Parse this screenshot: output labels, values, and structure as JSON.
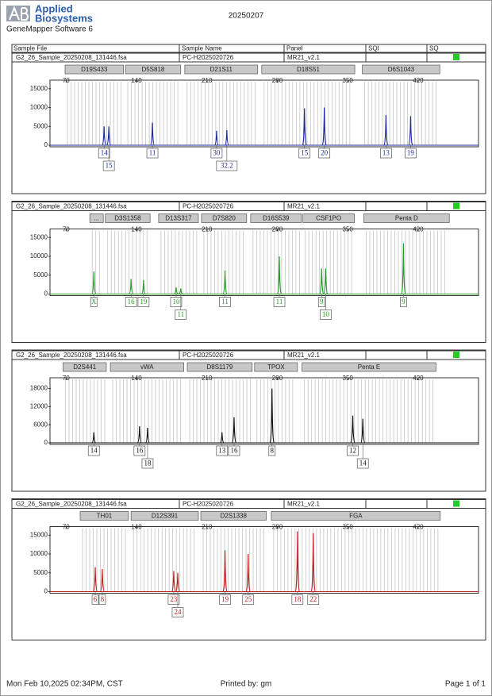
{
  "header": {
    "brand": [
      "Applied",
      "Biosystems"
    ],
    "software": "GeneMapper Software 6",
    "date": "20250207"
  },
  "columns": [
    "Sample File",
    "Sample Name",
    "Panel",
    "SQI",
    "SQ"
  ],
  "panels": [
    {
      "sample_file": "G2_26_Sample_20250208_131446.fsa",
      "sample_name": "PC-H2025020726",
      "panel": "MR21_v2.1",
      "color": "#1f2aa0",
      "xlim": [
        54,
        480
      ],
      "xticks": [
        70,
        140,
        210,
        280,
        350,
        420
      ],
      "ylim": [
        0,
        16000
      ],
      "yticks": [
        0,
        5000,
        10000,
        15000
      ],
      "markers": [
        {
          "name": "D19S433",
          "start": 69,
          "end": 127
        },
        {
          "name": "D5S818",
          "start": 129,
          "end": 184
        },
        {
          "name": "D21S11",
          "start": 188,
          "end": 260.5
        },
        {
          "name": "D18S51",
          "start": 264.5,
          "end": 357
        },
        {
          "name": "D6S1043",
          "start": 364.5,
          "end": 441.5
        }
      ],
      "peaks": [
        {
          "x": 107.8,
          "height": 5000,
          "allele": "14"
        },
        {
          "x": 112.5,
          "height": 5000,
          "allele": "15"
        },
        {
          "x": 155.8,
          "height": 6000,
          "allele": "11"
        },
        {
          "x": 219.6,
          "height": 3800,
          "allele": "30"
        },
        {
          "x": 229.8,
          "height": 4000,
          "allele": "32.2"
        },
        {
          "x": 307,
          "height": 9800,
          "allele": "15"
        },
        {
          "x": 326.7,
          "height": 10000,
          "allele": "20"
        },
        {
          "x": 388,
          "height": 8000,
          "allele": "13"
        },
        {
          "x": 412.5,
          "height": 7700,
          "allele": "19"
        }
      ]
    },
    {
      "sample_file": "G2_26_Sample_20250208_131446.fsa",
      "sample_name": "PC-H2025020726",
      "panel": "MR21_v2.1",
      "color": "#2a9a2a",
      "xlim": [
        54,
        480
      ],
      "xticks": [
        70,
        140,
        210,
        280,
        350,
        420
      ],
      "ylim": [
        0,
        16000
      ],
      "yticks": [
        0,
        5000,
        10000,
        15000
      ],
      "markers": [
        {
          "name": "...",
          "start": 93.6,
          "end": 107
        },
        {
          "name": "D3S1358",
          "start": 109,
          "end": 153.5
        },
        {
          "name": "D13S317",
          "start": 162,
          "end": 201.5
        },
        {
          "name": "D7S820",
          "start": 204.6,
          "end": 249.5
        },
        {
          "name": "D16S539",
          "start": 253.5,
          "end": 303.9
        },
        {
          "name": "CSF1PO",
          "start": 305.4,
          "end": 356.6
        },
        {
          "name": "Penta D",
          "start": 366,
          "end": 451
        }
      ],
      "peaks": [
        {
          "x": 97.6,
          "height": 6000,
          "allele": "X"
        },
        {
          "x": 134.6,
          "height": 4000,
          "allele": "16"
        },
        {
          "x": 147,
          "height": 3700,
          "allele": "19"
        },
        {
          "x": 179.4,
          "height": 1800,
          "allele": "10"
        },
        {
          "x": 184,
          "height": 1500,
          "allele": "11"
        },
        {
          "x": 228,
          "height": 6200,
          "allele": "11"
        },
        {
          "x": 282,
          "height": 10000,
          "allele": "11"
        },
        {
          "x": 324,
          "height": 6800,
          "allele": "9"
        },
        {
          "x": 328,
          "height": 6800,
          "allele": "10"
        },
        {
          "x": 405.4,
          "height": 13500,
          "allele": "9"
        }
      ]
    },
    {
      "sample_file": "G2_26_Sample_20250208_131446.fsa",
      "sample_name": "PC-H2025020726",
      "panel": "MR21_v2.1",
      "color": "#111111",
      "xlim": [
        54,
        480
      ],
      "xticks": [
        70,
        140,
        210,
        280,
        350,
        420
      ],
      "ylim": [
        0,
        20000
      ],
      "yticks": [
        0,
        6000,
        12000,
        18000
      ],
      "markers": [
        {
          "name": "D2S441",
          "start": 67,
          "end": 110
        },
        {
          "name": "vWA",
          "start": 114,
          "end": 187
        },
        {
          "name": "D8S1179",
          "start": 190.5,
          "end": 255
        },
        {
          "name": "TPOX",
          "start": 257.4,
          "end": 300
        },
        {
          "name": "Penta E",
          "start": 304.6,
          "end": 437.7
        }
      ],
      "peaks": [
        {
          "x": 97.6,
          "height": 3500,
          "allele": "14"
        },
        {
          "x": 143,
          "height": 5500,
          "allele": "16"
        },
        {
          "x": 151,
          "height": 5000,
          "allele": "18"
        },
        {
          "x": 225,
          "height": 3500,
          "allele": "13"
        },
        {
          "x": 237,
          "height": 8500,
          "allele": "16"
        },
        {
          "x": 274.7,
          "height": 18000,
          "allele": "8"
        },
        {
          "x": 355,
          "height": 9000,
          "allele": "12"
        },
        {
          "x": 365,
          "height": 8000,
          "allele": "14"
        }
      ]
    },
    {
      "sample_file": "G2_26_Sample_20250208_131446.fsa",
      "sample_name": "PC-H2025020726",
      "panel": "MR21_v2.1",
      "color": "#c02020",
      "xlim": [
        54,
        480
      ],
      "xticks": [
        70,
        140,
        210,
        280,
        350,
        420
      ],
      "ylim": [
        0,
        16000
      ],
      "yticks": [
        0,
        5000,
        10000,
        15000
      ],
      "markers": [
        {
          "name": "TH01",
          "start": 84,
          "end": 132
        },
        {
          "name": "D12S391",
          "start": 134.6,
          "end": 201.5
        },
        {
          "name": "D2S1338",
          "start": 203.9,
          "end": 269
        },
        {
          "name": "FGA",
          "start": 274,
          "end": 442
        }
      ],
      "peaks": [
        {
          "x": 99,
          "height": 6500,
          "allele": "6"
        },
        {
          "x": 106,
          "height": 6000,
          "allele": "8"
        },
        {
          "x": 177,
          "height": 5500,
          "allele": "23"
        },
        {
          "x": 181,
          "height": 5000,
          "allele": "24"
        },
        {
          "x": 228,
          "height": 11000,
          "allele": "19"
        },
        {
          "x": 251,
          "height": 10000,
          "allele": "25"
        },
        {
          "x": 300,
          "height": 16000,
          "allele": "18"
        },
        {
          "x": 315.7,
          "height": 15500,
          "allele": "22"
        }
      ]
    }
  ],
  "footer": {
    "printed_at": "Mon Feb 10,2025 02:34PM, CST",
    "printed_by": "Printed by: gm",
    "page": "Page 1 of 1"
  }
}
